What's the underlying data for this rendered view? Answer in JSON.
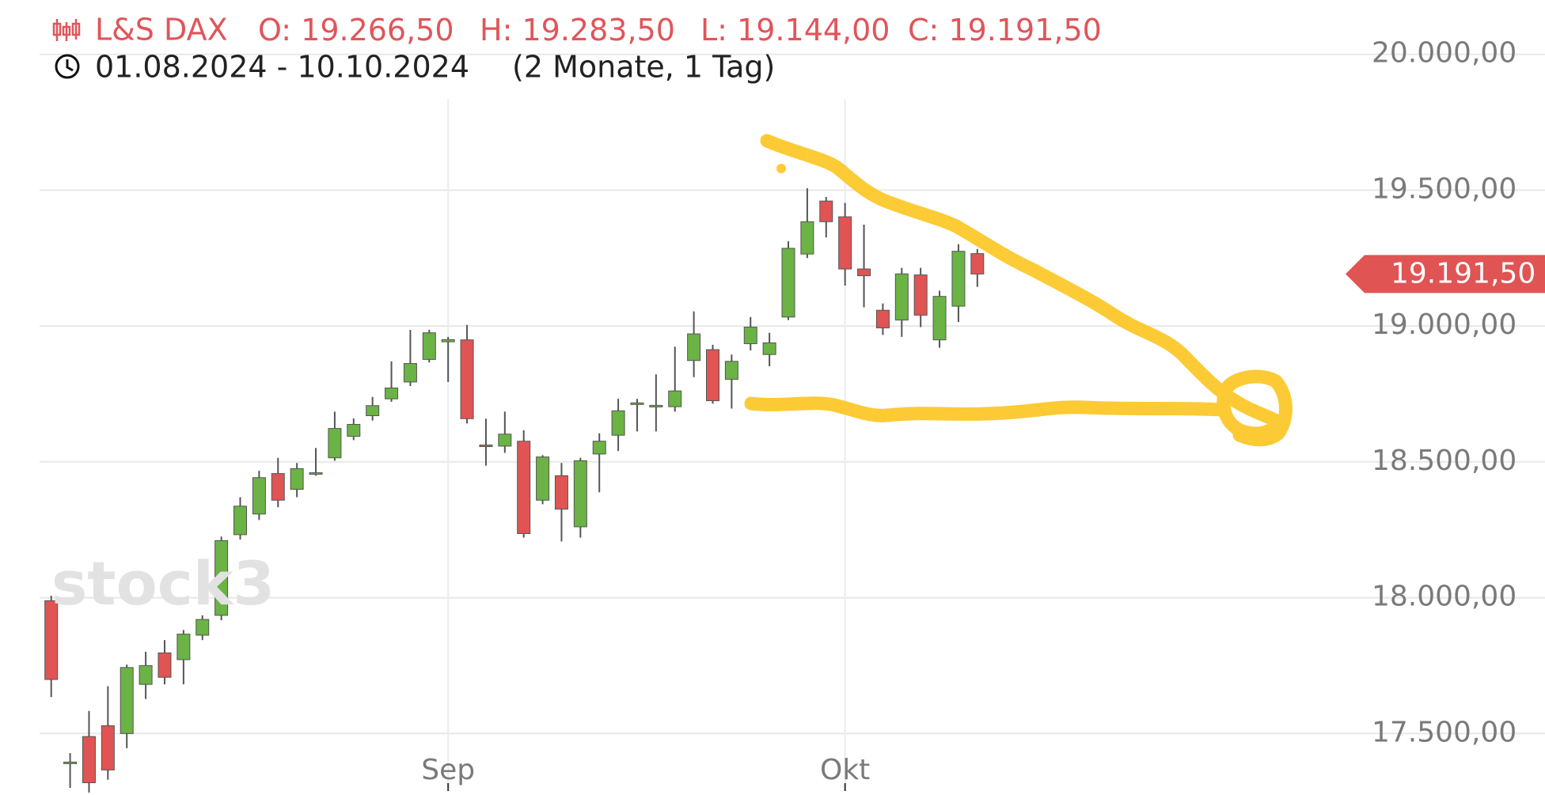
{
  "chart_data": {
    "type": "candlestick",
    "header": {
      "instrument": "L&S DAX",
      "fields": [
        {
          "label": "O:",
          "value": "19.266,50"
        },
        {
          "label": "H:",
          "value": "19.283,50"
        },
        {
          "label": "L:",
          "value": "19.144,00"
        },
        {
          "label": "C:",
          "value": "19.191,50"
        }
      ],
      "period": "01.08.2024 - 10.10.2024",
      "duration": "(2 Monate, 1 Tag)",
      "color": "#e0555a"
    },
    "watermark": "stock3",
    "categories": [
      null,
      null,
      null,
      null,
      null,
      null,
      null,
      null,
      null,
      null,
      null,
      null,
      null,
      null,
      null,
      null,
      null,
      null,
      null,
      null,
      null,
      "Sep",
      null,
      null,
      null,
      null,
      null,
      null,
      null,
      null,
      null,
      null,
      null,
      null,
      null,
      null,
      null,
      null,
      null,
      null,
      null,
      null,
      "Okt",
      null,
      null,
      null,
      null,
      null,
      null,
      null
    ],
    "open": [
      17989,
      17391,
      17489,
      17529,
      17500,
      17681,
      17797,
      17772,
      17862,
      17935,
      18232,
      18308,
      18457,
      18399,
      18457,
      18515,
      18594,
      18670,
      18732,
      18794,
      18877,
      18942,
      18949,
      18562,
      18558,
      18576,
      18359,
      18449,
      18261,
      18529,
      18598,
      18714,
      18703,
      18703,
      18873,
      18913,
      18804,
      18935,
      18895,
      19033,
      19265,
      19460,
      19402,
      19210,
      19058,
      19022,
      19188,
      18949,
      19073,
      19266.5
    ],
    "high": [
      18007,
      17428,
      17583,
      17674,
      17754,
      17801,
      17844,
      17881,
      17935,
      18225,
      18370,
      18467,
      18515,
      18496,
      18551,
      18685,
      18660,
      18739,
      18870,
      18986,
      18986,
      18960,
      19004,
      18659,
      18685,
      18616,
      18525,
      18496,
      18515,
      18605,
      18732,
      18732,
      18822,
      18924,
      19054,
      18931,
      18895,
      19033,
      18975,
      19312,
      19507,
      19475,
      19453,
      19373,
      19083,
      19214,
      19214,
      19130,
      19301,
      19283.5
    ],
    "low": [
      17634,
      17300,
      17283,
      17330,
      17446,
      17627,
      17681,
      17681,
      17844,
      17917,
      18214,
      18286,
      18333,
      18370,
      18449,
      18504,
      18580,
      18652,
      18721,
      18779,
      18866,
      18794,
      18641,
      18486,
      18533,
      18221,
      18344,
      18207,
      18221,
      18388,
      18540,
      18612,
      18612,
      18685,
      18812,
      18714,
      18696,
      18910,
      18852,
      19022,
      19250,
      19326,
      19149,
      19069,
      18967,
      18960,
      18996,
      18920,
      19015,
      19144
    ],
    "close": [
      17699,
      17395,
      17319,
      17366,
      17743,
      17750,
      17707,
      17866,
      17920,
      18210,
      18337,
      18442,
      18359,
      18475,
      18460,
      18623,
      18638,
      18707,
      18772,
      18862,
      18975,
      18950,
      18659,
      18558,
      18602,
      18236,
      18518,
      18326,
      18504,
      18576,
      18688,
      18717,
      18708,
      18761,
      18971,
      18725,
      18870,
      18996,
      18938,
      19286,
      19384,
      19384,
      19210,
      19185,
      18993,
      19192,
      19040,
      19109,
      19275,
      19191.5
    ],
    "up_color": "#6ab344",
    "down_color": "#e05454",
    "ylim": [
      17300,
      20200
    ],
    "yticks": [
      {
        "value": 17500,
        "label": "17.500,00"
      },
      {
        "value": 18000,
        "label": "18.000,00"
      },
      {
        "value": 18500,
        "label": "18.500,00"
      },
      {
        "value": 19000,
        "label": "19.000,00"
      },
      {
        "value": 19500,
        "label": "19.500,00"
      },
      {
        "value": 20000,
        "label": "20.000,00"
      }
    ],
    "price_marker": {
      "value": 19191.5,
      "label": "19.191,50",
      "color": "#e05454"
    },
    "grid": true
  }
}
